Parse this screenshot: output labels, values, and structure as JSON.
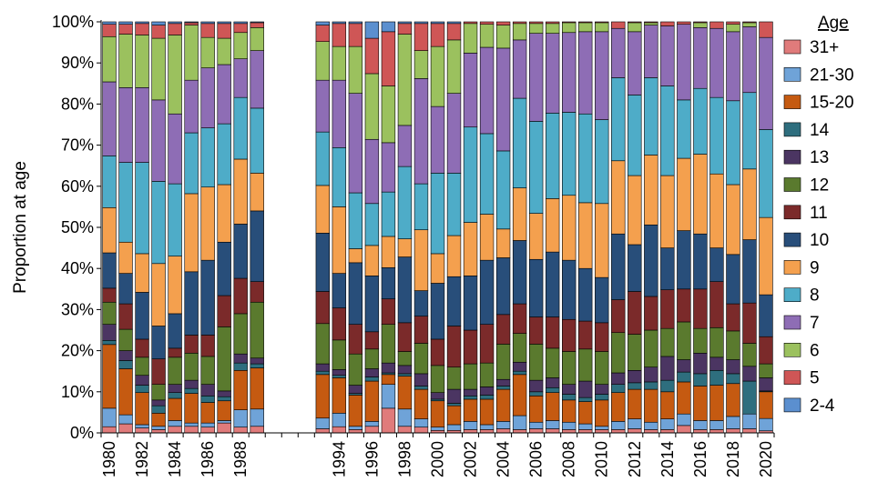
{
  "chart_data": {
    "type": "bar",
    "stacked": true,
    "ylabel": "Proportion at age",
    "xlabel": "",
    "title": "",
    "ylim": [
      0,
      100
    ],
    "yticks": [
      "0%",
      "10%",
      "20%",
      "30%",
      "40%",
      "50%",
      "60%",
      "70%",
      "80%",
      "90%",
      "100%"
    ],
    "xtick_labels": [
      "1980",
      "1982",
      "1984",
      "1986",
      "1988",
      "1994",
      "1996",
      "1998",
      "2000",
      "2002",
      "2004",
      "2006",
      "2008",
      "2010",
      "2012",
      "2014",
      "2016",
      "2018",
      "2020"
    ],
    "grid": false,
    "legend": {
      "title": "Age",
      "position": "right",
      "entries": [
        "31+",
        "21-30",
        "15-20",
        "14",
        "13",
        "12",
        "11",
        "10",
        "9",
        "8",
        "7",
        "6",
        "5",
        "2-4"
      ]
    },
    "series_stack_order_bottom_to_top": [
      "2-4",
      "5",
      "6",
      "7",
      "8",
      "9",
      "10",
      "11",
      "12",
      "13",
      "14",
      "15-20",
      "21-30",
      "31+"
    ],
    "colors": {
      "31+": "#e07b7b",
      "21-30": "#6fa3d8",
      "15-20": "#c55a11",
      "14": "#2e6e7e",
      "13": "#4b3562",
      "12": "#5a7a2e",
      "11": "#7b2a2a",
      "10": "#284e7a",
      "9": "#f4a04e",
      "8": "#4eacc8",
      "7": "#8e6db5",
      "6": "#9bc15e",
      "5": "#cf5656",
      "2-4": "#5b8fcf"
    },
    "years": [
      1980,
      1981,
      1982,
      1983,
      1984,
      1985,
      1986,
      1987,
      1988,
      1989,
      1993,
      1994,
      1995,
      1996,
      1997,
      1998,
      1999,
      2000,
      2001,
      2002,
      2003,
      2004,
      2005,
      2006,
      2007,
      2008,
      2009,
      2010,
      2011,
      2012,
      2013,
      2014,
      2015,
      2016,
      2017,
      2018,
      2019,
      2020
    ],
    "cumulative_tops": {
      "31+": [
        1.5,
        2.2,
        1.2,
        0.8,
        1.6,
        1.6,
        1.4,
        2.4,
        1.4,
        1.6,
        1.0,
        1.5,
        0.8,
        1.6,
        6.0,
        1.6,
        1.4,
        0.6,
        0.6,
        0.8,
        0.8,
        1.0,
        0.8,
        1.0,
        1.0,
        0.8,
        0.8,
        0.8,
        0.8,
        1.0,
        0.8,
        0.8,
        1.8,
        0.8,
        0.8,
        1.0,
        1.0,
        0.5
      ],
      "21-30": [
        6.0,
        4.4,
        2.0,
        1.6,
        3.0,
        2.4,
        2.4,
        3.0,
        5.6,
        5.8,
        3.6,
        4.8,
        1.6,
        2.8,
        11.8,
        5.8,
        3.4,
        1.4,
        2.0,
        2.8,
        2.0,
        2.8,
        4.2,
        2.6,
        3.0,
        2.6,
        2.2,
        1.6,
        2.8,
        3.4,
        2.6,
        3.4,
        4.6,
        3.0,
        3.0,
        4.0,
        4.6,
        3.5
      ],
      "15-20": [
        21.5,
        15.6,
        9.8,
        4.8,
        8.4,
        9.6,
        7.4,
        7.8,
        15.2,
        15.8,
        14.2,
        13.4,
        9.2,
        12.6,
        14.2,
        13.8,
        10.6,
        7.8,
        6.6,
        8.2,
        8.2,
        10.6,
        14.2,
        9.0,
        9.8,
        8.0,
        7.6,
        8.0,
        9.8,
        10.6,
        10.6,
        10.0,
        12.4,
        11.4,
        11.6,
        12.0,
        12.6,
        10.0
      ],
      "14": [
        22.5,
        17.6,
        11.6,
        6.6,
        9.8,
        10.8,
        9.0,
        8.8,
        17.0,
        16.8,
        15.0,
        14.0,
        9.6,
        13.6,
        14.6,
        14.4,
        11.4,
        8.2,
        7.2,
        9.0,
        9.2,
        11.4,
        15.0,
        10.0,
        11.0,
        9.4,
        8.6,
        9.4,
        11.8,
        12.2,
        12.4,
        12.8,
        14.8,
        14.4,
        15.2,
        14.4,
        12.6,
        10.2
      ],
      "13": [
        26.4,
        20.0,
        14.0,
        8.0,
        11.8,
        12.8,
        11.8,
        10.2,
        19.2,
        18.2,
        16.8,
        15.4,
        11.6,
        15.6,
        17.0,
        16.4,
        14.4,
        9.8,
        10.6,
        10.6,
        11.2,
        13.0,
        17.2,
        12.8,
        13.4,
        11.8,
        12.6,
        11.8,
        14.6,
        15.2,
        16.0,
        18.6,
        17.8,
        19.4,
        18.4,
        17.8,
        16.2,
        13.4
      ],
      "12": [
        31.8,
        25.2,
        18.4,
        11.8,
        18.4,
        19.4,
        18.6,
        25.8,
        29.0,
        31.8,
        26.6,
        22.6,
        19.2,
        20.4,
        26.4,
        19.8,
        21.8,
        16.4,
        16.0,
        16.8,
        17.0,
        21.6,
        24.2,
        21.6,
        20.6,
        19.8,
        20.4,
        19.8,
        24.4,
        24.0,
        25.0,
        25.4,
        27.0,
        25.4,
        25.6,
        24.8,
        21.8,
        16.8
      ],
      "11": [
        35.2,
        31.4,
        22.8,
        18.0,
        20.6,
        23.8,
        23.8,
        33.4,
        37.6,
        36.8,
        34.4,
        30.4,
        26.4,
        24.6,
        32.6,
        26.8,
        28.4,
        22.8,
        26.0,
        25.0,
        26.4,
        28.8,
        31.4,
        28.2,
        28.2,
        27.6,
        27.2,
        26.8,
        32.4,
        34.4,
        33.2,
        34.8,
        35.0,
        35.0,
        36.8,
        31.4,
        31.6,
        23.4
      ],
      "10": [
        43.8,
        38.8,
        34.2,
        26.0,
        29.0,
        39.2,
        42.0,
        46.4,
        50.8,
        54.0,
        48.6,
        38.8,
        41.4,
        38.2,
        40.2,
        42.8,
        34.6,
        36.4,
        38.0,
        38.2,
        42.0,
        42.6,
        46.8,
        42.2,
        44.0,
        42.0,
        40.0,
        37.8,
        48.4,
        45.8,
        50.6,
        45.0,
        49.2,
        48.4,
        45.0,
        43.4,
        47.0,
        33.6
      ],
      "9": [
        54.8,
        46.4,
        43.6,
        41.2,
        43.0,
        58.2,
        59.8,
        60.4,
        66.6,
        63.2,
        60.2,
        55.0,
        44.8,
        45.6,
        47.8,
        47.2,
        49.4,
        43.6,
        48.0,
        51.2,
        53.2,
        49.6,
        59.6,
        53.4,
        57.0,
        57.8,
        56.0,
        55.8,
        66.2,
        62.6,
        67.6,
        62.6,
        66.8,
        67.8,
        63.0,
        60.4,
        64.2,
        52.4
      ],
      "8": [
        67.4,
        65.8,
        65.8,
        61.2,
        60.6,
        73.0,
        74.2,
        75.2,
        81.6,
        79.0,
        73.2,
        69.4,
        58.4,
        55.8,
        58.6,
        64.8,
        60.6,
        63.2,
        63.2,
        74.4,
        72.8,
        68.6,
        81.4,
        75.8,
        77.8,
        78.0,
        77.6,
        76.2,
        86.4,
        82.2,
        86.4,
        84.4,
        81.0,
        83.8,
        81.6,
        80.8,
        82.8,
        73.8
      ],
      "7": [
        85.4,
        84.0,
        84.0,
        81.0,
        77.6,
        85.8,
        88.8,
        89.6,
        91.0,
        93.0,
        85.8,
        85.8,
        82.6,
        71.4,
        70.6,
        74.8,
        86.2,
        79.4,
        82.6,
        92.4,
        93.8,
        93.6,
        95.6,
        97.2,
        97.2,
        97.4,
        97.6,
        97.6,
        98.4,
        97.6,
        99.2,
        99.0,
        99.4,
        98.6,
        98.4,
        97.6,
        98.8,
        96.2
      ],
      "6": [
        96.4,
        97.0,
        96.8,
        96.0,
        96.8,
        99.2,
        96.2,
        96.0,
        97.4,
        98.6,
        95.2,
        94.0,
        94.0,
        87.4,
        84.4,
        97.0,
        93.0,
        94.0,
        95.6,
        99.6,
        99.4,
        99.2,
        99.6,
        99.6,
        99.6,
        99.8,
        99.8,
        99.8,
        100,
        99.8,
        99.8,
        100,
        100,
        99.8,
        100,
        99.4,
        99.8,
        100
      ],
      "5": [
        99.4,
        99.4,
        99.6,
        99.2,
        99.6,
        99.8,
        99.6,
        99.6,
        99.6,
        99.8,
        99.2,
        99.6,
        99.6,
        96.0,
        97.6,
        99.6,
        99.6,
        99.6,
        99.6,
        100,
        100,
        100,
        100,
        100,
        100,
        100,
        100,
        100,
        100,
        100,
        100,
        100,
        100,
        100,
        100,
        100,
        100,
        100
      ],
      "2-4": [
        100,
        100,
        100,
        100,
        100,
        100,
        100,
        100,
        100,
        100,
        100,
        100,
        100,
        100,
        100,
        100,
        100,
        100,
        100,
        100,
        100,
        100,
        100,
        100,
        100,
        100,
        100,
        100,
        100,
        100,
        100,
        100,
        100,
        100,
        100,
        100,
        100,
        100
      ]
    }
  }
}
